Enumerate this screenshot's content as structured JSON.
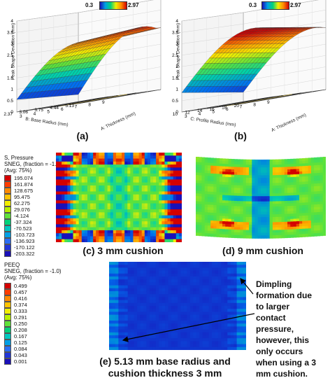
{
  "panel_a": {
    "label": "(a)",
    "colorbar": {
      "min": "0.3",
      "max": "2.97"
    },
    "z_axis_label": "Peak Shape Deviation (mm)",
    "z_ticks": [
      "0",
      "0.5",
      "1",
      "1.5",
      "2",
      "2.5",
      "3",
      "3.5",
      "4"
    ],
    "x_axis_label": "A: Thickness (mm)",
    "x_ticks": [
      "3",
      "4",
      "5",
      "6",
      "7",
      "8",
      "9"
    ],
    "y_axis_label": "B: Base Radius (mm)",
    "y_ticks": [
      "5.13",
      "4.44",
      "3.75",
      "3.06",
      "2.37"
    ]
  },
  "panel_b": {
    "label": "(b)",
    "colorbar": {
      "min": "0.3",
      "max": "2.97"
    },
    "z_axis_label": "Peak Shape Deviation (mm)",
    "z_ticks": [
      "0",
      "0.5",
      "1",
      "1.5",
      "2",
      "2.5",
      "3",
      "3.5",
      "4"
    ],
    "x_axis_label": "A: Thickness (mm)",
    "x_ticks": [
      "3",
      "4",
      "5",
      "6",
      "7",
      "8",
      "9"
    ],
    "y_axis_label": "C: Profile Radius (mm)",
    "y_ticks": [
      "20",
      "18",
      "16",
      "14",
      "12",
      "10"
    ]
  },
  "stress_legend": {
    "title_lines": [
      "S, Pressure",
      "SNEG, (fraction = -1.0)",
      "(Avg: 75%)"
    ],
    "values": [
      "195.074",
      "161.874",
      "128.675",
      "95.475",
      "62.275",
      "29.076",
      "-4.124",
      "-37.324",
      "-70.523",
      "-103.723",
      "-136.923",
      "-170.122",
      "-203.322"
    ],
    "colors": [
      "#d40000",
      "#ff3d00",
      "#ff8a00",
      "#ffc400",
      "#f3ee00",
      "#b8f000",
      "#5fe23a",
      "#00d27a",
      "#00c8c0",
      "#00a0e6",
      "#2a6ef5",
      "#2236d8",
      "#1a10b8"
    ]
  },
  "panel_c": {
    "caption": "(c) 3 mm cushion"
  },
  "panel_d": {
    "caption": "(d) 9 mm cushion"
  },
  "peeq_legend": {
    "title_lines": [
      "PEEQ",
      "SNEG, (fraction = -1.0)",
      "(Avg: 75%)"
    ],
    "values": [
      "0.499",
      "0.457",
      "0.416",
      "0.374",
      "0.333",
      "0.291",
      "0.250",
      "0.208",
      "0.167",
      "0.125",
      "0.084",
      "0.043",
      "0.001"
    ],
    "colors": [
      "#d40000",
      "#ff3d00",
      "#ff8a00",
      "#ffc400",
      "#f3ee00",
      "#b8f000",
      "#5fe23a",
      "#00d27a",
      "#00c8c0",
      "#00a0e6",
      "#2a6ef5",
      "#2236d8",
      "#1a10b8"
    ]
  },
  "panel_e": {
    "caption_lines": [
      "(e) 5.13 mm base radius and",
      "cushion thickness 3 mm"
    ],
    "annotation_lines": [
      "Dimpling",
      "formation due",
      "to larger",
      "contact",
      "pressure,",
      "however, this",
      "only occurs",
      "when using a 3",
      "mm cushion."
    ]
  }
}
